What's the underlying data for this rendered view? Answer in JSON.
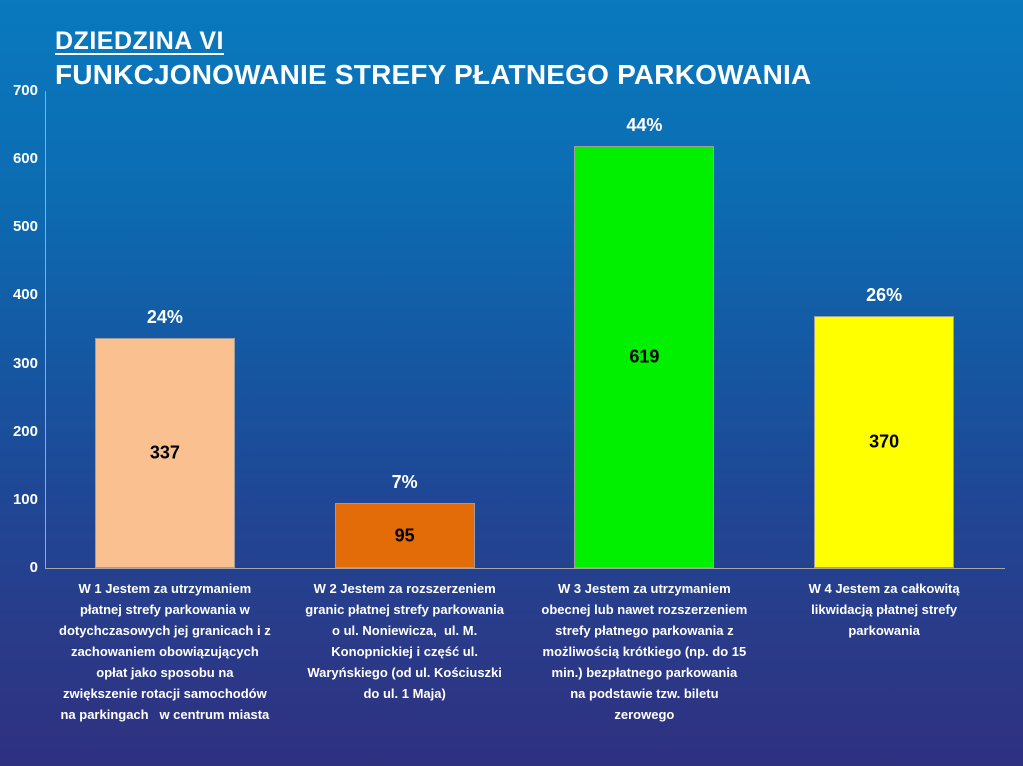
{
  "title": {
    "line1": "DZIEDZINA VI",
    "line2": "FUNKCJONOWANIE STREFY PŁATNEGO PARKOWANIA"
  },
  "chart_data": {
    "type": "bar",
    "title": "DZIEDZINA VI — FUNKCJONOWANIE STREFY PŁATNEGO PARKOWANIA",
    "categories": [
      "W 1 Jestem za utrzymaniem\npłatnej strefy parkowania w\ndotychczasowych jej granicach i z\nzachowaniem obowiązujących\nopłat jako sposobu na\nzwiększenie rotacji samochodów\nna parkingach   w centrum miasta",
      "W 2 Jestem za rozszerzeniem\ngranic płatnej strefy parkowania\no ul. Noniewicza,  ul. M.\nKonopnickiej i część ul.\nWaryńskiego (od ul. Kościuszki\ndo ul. 1 Maja)",
      "W 3 Jestem za utrzymaniem\nobecnej lub nawet rozszerzeniem\nstrefy płatnego parkowania z\nmożliwością krótkiego (np. do 15\nmin.) bezpłatnego parkowania\nna podstawie tzw. biletu\nzerowego",
      "W 4 Jestem za całkowitą\nlikwidacją płatnej strefy\nparkowania"
    ],
    "values": [
      337,
      95,
      619,
      370
    ],
    "percent_labels": [
      "24%",
      "7%",
      "44%",
      "26%"
    ],
    "bar_colors": [
      "#FAC090",
      "#E36C09",
      "#00F000",
      "#FFFF00"
    ],
    "xlabel": "",
    "ylabel": "",
    "ylim": [
      0,
      700
    ],
    "yticks": [
      0,
      100,
      200,
      300,
      400,
      500,
      600,
      700
    ],
    "grid": false,
    "legend": false,
    "axis_color": "#A6A6A6",
    "value_label_color": "#000000",
    "percent_label_color": "#FFFFFF",
    "background_top": "#0A79BE",
    "background_bottom": "#2F3080"
  }
}
